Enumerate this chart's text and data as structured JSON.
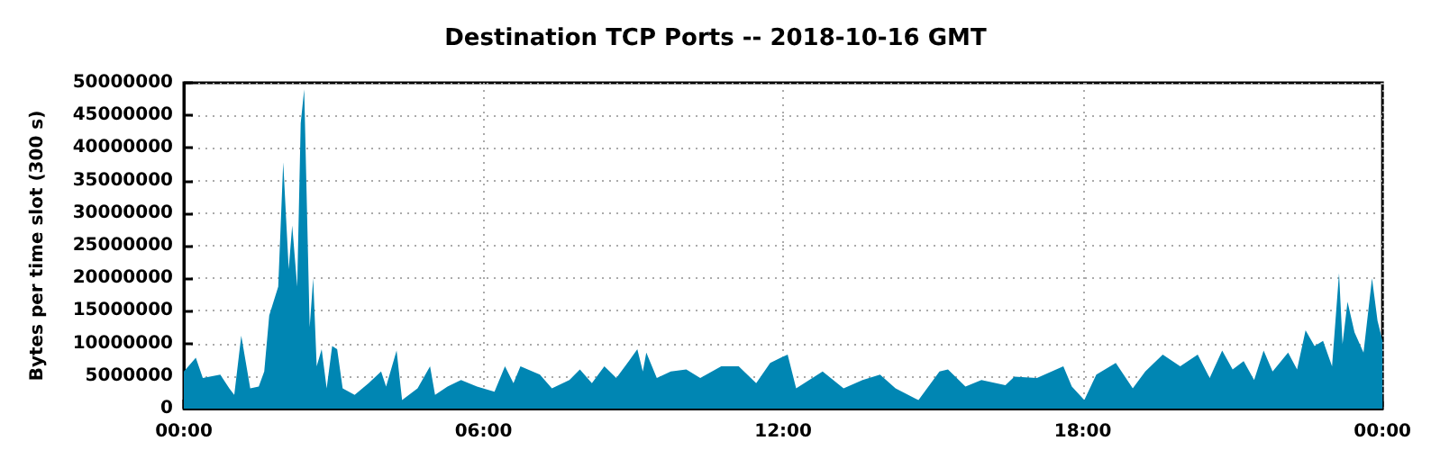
{
  "chart_data": {
    "type": "area",
    "title": "Destination TCP Ports -- 2018-10-16 GMT",
    "ylabel": "Bytes per time slot (300 s)",
    "x": [
      0,
      0.24,
      0.38,
      0.73,
      0.91,
      1.01,
      1.15,
      1.33,
      1.5,
      1.61,
      1.71,
      1.89,
      1.99,
      2.1,
      2.17,
      2.27,
      2.34,
      2.41,
      2.52,
      2.59,
      2.66,
      2.76,
      2.86,
      2.97,
      3.07,
      3.18,
      3.42,
      3.7,
      3.95,
      4.05,
      4.26,
      4.37,
      4.68,
      4.93,
      5.03,
      5.28,
      5.55,
      5.87,
      6.22,
      6.43,
      6.6,
      6.74,
      7.13,
      7.37,
      7.72,
      7.93,
      8.17,
      8.42,
      8.66,
      8.91,
      9.08,
      9.19,
      9.26,
      9.47,
      9.75,
      10.06,
      10.34,
      10.76,
      11.11,
      11.46,
      11.74,
      11.95,
      12.09,
      12.26,
      12.79,
      13.21,
      13.59,
      13.94,
      14.25,
      14.71,
      15.13,
      15.3,
      15.65,
      15.97,
      16.45,
      16.63,
      17.08,
      17.61,
      17.78,
      18.03,
      18.27,
      18.66,
      19,
      19.25,
      19.6,
      19.95,
      20.3,
      20.54,
      20.79,
      21,
      21.22,
      21.43,
      21.62,
      21.8,
      22.11,
      22.29,
      22.46,
      22.64,
      22.81,
      22.99,
      23.13,
      23.2,
      23.3,
      23.44,
      23.62,
      23.79,
      23.9,
      24
    ],
    "series": [
      {
        "color": "#0086b3",
        "values": [
          5700000,
          7800000,
          4700000,
          5200000,
          3100000,
          2100000,
          11200000,
          3100000,
          3400000,
          5700000,
          14300000,
          18700000,
          37800000,
          21400000,
          28100000,
          18700000,
          43800000,
          49000000,
          12500000,
          20000000,
          6500000,
          9100000,
          3100000,
          9600000,
          9100000,
          3100000,
          2100000,
          3900000,
          5700000,
          3400000,
          8900000,
          1300000,
          3100000,
          6500000,
          2100000,
          3400000,
          4400000,
          3400000,
          2600000,
          6500000,
          3900000,
          6500000,
          5200000,
          3100000,
          4400000,
          6000000,
          3900000,
          6500000,
          4700000,
          7300000,
          9100000,
          5700000,
          8600000,
          4700000,
          5700000,
          6000000,
          4700000,
          6500000,
          6500000,
          3900000,
          7000000,
          7800000,
          8300000,
          3100000,
          5700000,
          3100000,
          4400000,
          5200000,
          3100000,
          1300000,
          5700000,
          6000000,
          3400000,
          4400000,
          3600000,
          4900000,
          4700000,
          6500000,
          3400000,
          1300000,
          5200000,
          7000000,
          3100000,
          5700000,
          8300000,
          6500000,
          8300000,
          4700000,
          8900000,
          6000000,
          7300000,
          4400000,
          8900000,
          5700000,
          8600000,
          6000000,
          12000000,
          9600000,
          10400000,
          6500000,
          20800000,
          9900000,
          16400000,
          11700000,
          8600000,
          20000000,
          13500000,
          10400000
        ]
      }
    ],
    "xlim": [
      0,
      24
    ],
    "xticks": [
      {
        "value": 0,
        "label": "00:00"
      },
      {
        "value": 6,
        "label": "06:00"
      },
      {
        "value": 12,
        "label": "12:00"
      },
      {
        "value": 18,
        "label": "18:00"
      },
      {
        "value": 24,
        "label": "00:00"
      }
    ],
    "ylim": [
      0,
      50000000
    ],
    "yticks": [
      0,
      5000000,
      10000000,
      15000000,
      20000000,
      25000000,
      30000000,
      35000000,
      40000000,
      45000000,
      50000000
    ],
    "grid": true
  }
}
